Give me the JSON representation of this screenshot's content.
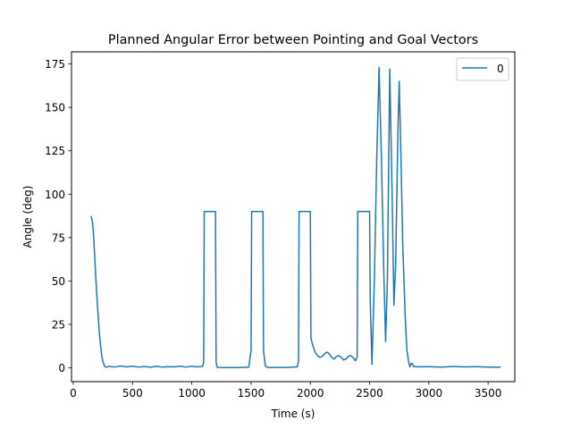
{
  "chart_data": {
    "type": "line",
    "title": "Planned Angular Error between Pointing and Goal Vectors",
    "xlabel": "Time (s)",
    "ylabel": "Angle (deg)",
    "xlim": [
      -15,
      3725
    ],
    "ylim": [
      -8,
      182
    ],
    "xticks": [
      0,
      500,
      1000,
      1500,
      2000,
      2500,
      3000,
      3500
    ],
    "yticks": [
      0,
      25,
      50,
      75,
      100,
      125,
      150,
      175
    ],
    "grid": false,
    "legend_position": "upper right",
    "series": [
      {
        "name": "0",
        "color": "#1f77b4",
        "points": [
          [
            150,
            87
          ],
          [
            160,
            85
          ],
          [
            170,
            78
          ],
          [
            180,
            65
          ],
          [
            190,
            52
          ],
          [
            200,
            40
          ],
          [
            210,
            30
          ],
          [
            220,
            20
          ],
          [
            230,
            13
          ],
          [
            240,
            7
          ],
          [
            250,
            3.5
          ],
          [
            260,
            1.5
          ],
          [
            270,
            0.5
          ],
          [
            280,
            0.3
          ],
          [
            300,
            0.8
          ],
          [
            350,
            0.4
          ],
          [
            400,
            1.0
          ],
          [
            450,
            0.5
          ],
          [
            500,
            0.9
          ],
          [
            550,
            0.4
          ],
          [
            600,
            0.7
          ],
          [
            650,
            0.3
          ],
          [
            700,
            0.8
          ],
          [
            750,
            0.4
          ],
          [
            800,
            0.6
          ],
          [
            850,
            0.5
          ],
          [
            900,
            0.9
          ],
          [
            950,
            0.4
          ],
          [
            1000,
            0.8
          ],
          [
            1050,
            0.5
          ],
          [
            1090,
            0.8
          ],
          [
            1100,
            3
          ],
          [
            1105,
            90
          ],
          [
            1200,
            90
          ],
          [
            1205,
            3
          ],
          [
            1215,
            0.2
          ],
          [
            1300,
            0.1
          ],
          [
            1400,
            0.1
          ],
          [
            1480,
            0.3
          ],
          [
            1500,
            10
          ],
          [
            1505,
            90
          ],
          [
            1600,
            90
          ],
          [
            1605,
            10
          ],
          [
            1620,
            1
          ],
          [
            1640,
            0.2
          ],
          [
            1700,
            0.2
          ],
          [
            1800,
            0.2
          ],
          [
            1890,
            0.5
          ],
          [
            1900,
            4
          ],
          [
            1905,
            90
          ],
          [
            2000,
            90
          ],
          [
            2005,
            17
          ],
          [
            2020,
            13
          ],
          [
            2040,
            9
          ],
          [
            2060,
            7
          ],
          [
            2080,
            6
          ],
          [
            2100,
            6.5
          ],
          [
            2120,
            8
          ],
          [
            2140,
            9
          ],
          [
            2160,
            8
          ],
          [
            2180,
            6
          ],
          [
            2200,
            5
          ],
          [
            2220,
            6.5
          ],
          [
            2240,
            7
          ],
          [
            2260,
            6
          ],
          [
            2280,
            4.5
          ],
          [
            2300,
            5
          ],
          [
            2320,
            6.5
          ],
          [
            2340,
            7
          ],
          [
            2360,
            6
          ],
          [
            2380,
            4
          ],
          [
            2395,
            6
          ],
          [
            2400,
            90
          ],
          [
            2500,
            90
          ],
          [
            2505,
            40
          ],
          [
            2520,
            2
          ],
          [
            2540,
            50
          ],
          [
            2560,
            120
          ],
          [
            2580,
            173
          ],
          [
            2600,
            120
          ],
          [
            2620,
            55
          ],
          [
            2635,
            15
          ],
          [
            2650,
            50
          ],
          [
            2670,
            172
          ],
          [
            2690,
            100
          ],
          [
            2705,
            36
          ],
          [
            2720,
            60
          ],
          [
            2740,
            140
          ],
          [
            2750,
            165
          ],
          [
            2765,
            120
          ],
          [
            2780,
            70
          ],
          [
            2800,
            30
          ],
          [
            2815,
            10
          ],
          [
            2830,
            3
          ],
          [
            2840,
            0.5
          ],
          [
            2850,
            2.5
          ],
          [
            2860,
            2.5
          ],
          [
            2870,
            0.8
          ],
          [
            2900,
            0.5
          ],
          [
            3000,
            0.6
          ],
          [
            3100,
            0.4
          ],
          [
            3200,
            0.7
          ],
          [
            3300,
            0.5
          ],
          [
            3400,
            0.6
          ],
          [
            3500,
            0.4
          ],
          [
            3600,
            0.3
          ]
        ]
      }
    ]
  }
}
